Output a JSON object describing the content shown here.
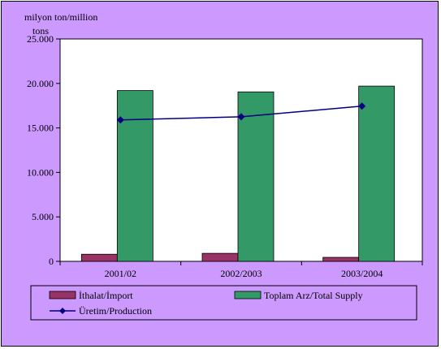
{
  "chart_data": {
    "type": "bar",
    "ylabel": "milyon ton/million tons",
    "ylabel_lines": [
      "milyon ton/million",
      "tons"
    ],
    "categories": [
      "2001/02",
      "2002/2003",
      "2003/2004"
    ],
    "y_ticks": [
      "0",
      "5.000",
      "10.000",
      "15.000",
      "20.000",
      "25.000"
    ],
    "ylim": [
      0,
      25000
    ],
    "series": [
      {
        "name": "İthalat/İmport",
        "kind": "bar",
        "values": [
          800,
          900,
          450
        ]
      },
      {
        "name": "Toplam Arz/Total Supply",
        "kind": "bar",
        "values": [
          19200,
          19050,
          19700
        ]
      },
      {
        "name": "Üretim/Production",
        "kind": "line",
        "values": [
          15900,
          16250,
          17450
        ]
      }
    ],
    "legend_position": "bottom",
    "grid": false
  },
  "colors": {
    "background": "#cc99ff",
    "plot_area": "#ffffff",
    "import_bar": "#993366",
    "supply_bar": "#339966",
    "production_line": "#000080"
  }
}
